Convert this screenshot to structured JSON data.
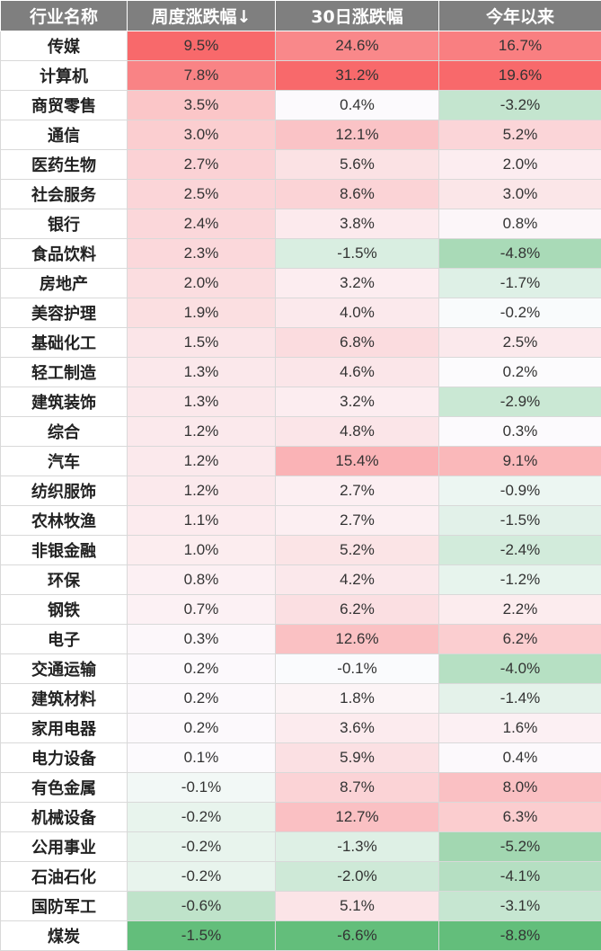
{
  "chart_data": {
    "type": "table",
    "columns": [
      "行业名称",
      "周度涨跌幅↓",
      "30日涨跌幅",
      "今年以来"
    ],
    "rows": [
      {
        "industry": "传媒",
        "weekly": 9.5,
        "d30": 24.6,
        "ytd": 16.7
      },
      {
        "industry": "计算机",
        "weekly": 7.8,
        "d30": 31.2,
        "ytd": 19.6
      },
      {
        "industry": "商贸零售",
        "weekly": 3.5,
        "d30": 0.4,
        "ytd": -3.2
      },
      {
        "industry": "通信",
        "weekly": 3.0,
        "d30": 12.1,
        "ytd": 5.2
      },
      {
        "industry": "医药生物",
        "weekly": 2.7,
        "d30": 5.6,
        "ytd": 2.0
      },
      {
        "industry": "社会服务",
        "weekly": 2.5,
        "d30": 8.6,
        "ytd": 3.0
      },
      {
        "industry": "银行",
        "weekly": 2.4,
        "d30": 3.8,
        "ytd": 0.8
      },
      {
        "industry": "食品饮料",
        "weekly": 2.3,
        "d30": -1.5,
        "ytd": -4.8
      },
      {
        "industry": "房地产",
        "weekly": 2.0,
        "d30": 3.2,
        "ytd": -1.7
      },
      {
        "industry": "美容护理",
        "weekly": 1.9,
        "d30": 4.0,
        "ytd": -0.2
      },
      {
        "industry": "基础化工",
        "weekly": 1.5,
        "d30": 6.8,
        "ytd": 2.5
      },
      {
        "industry": "轻工制造",
        "weekly": 1.3,
        "d30": 4.6,
        "ytd": 0.2
      },
      {
        "industry": "建筑装饰",
        "weekly": 1.3,
        "d30": 3.2,
        "ytd": -2.9
      },
      {
        "industry": "综合",
        "weekly": 1.2,
        "d30": 4.8,
        "ytd": 0.3
      },
      {
        "industry": "汽车",
        "weekly": 1.2,
        "d30": 15.4,
        "ytd": 9.1
      },
      {
        "industry": "纺织服饰",
        "weekly": 1.2,
        "d30": 2.7,
        "ytd": -0.9
      },
      {
        "industry": "农林牧渔",
        "weekly": 1.1,
        "d30": 2.7,
        "ytd": -1.5
      },
      {
        "industry": "非银金融",
        "weekly": 1.0,
        "d30": 5.2,
        "ytd": -2.4
      },
      {
        "industry": "环保",
        "weekly": 0.8,
        "d30": 4.2,
        "ytd": -1.2
      },
      {
        "industry": "钢铁",
        "weekly": 0.7,
        "d30": 6.2,
        "ytd": 2.2
      },
      {
        "industry": "电子",
        "weekly": 0.3,
        "d30": 12.6,
        "ytd": 6.2
      },
      {
        "industry": "交通运输",
        "weekly": 0.2,
        "d30": -0.1,
        "ytd": -4.0
      },
      {
        "industry": "建筑材料",
        "weekly": 0.2,
        "d30": 1.8,
        "ytd": -1.4
      },
      {
        "industry": "家用电器",
        "weekly": 0.2,
        "d30": 3.6,
        "ytd": 1.6
      },
      {
        "industry": "电力设备",
        "weekly": 0.1,
        "d30": 5.9,
        "ytd": 0.4
      },
      {
        "industry": "有色金属",
        "weekly": -0.1,
        "d30": 8.7,
        "ytd": 8.0
      },
      {
        "industry": "机械设备",
        "weekly": -0.2,
        "d30": 12.7,
        "ytd": 6.3
      },
      {
        "industry": "公用事业",
        "weekly": -0.2,
        "d30": -1.3,
        "ytd": -5.2
      },
      {
        "industry": "石油石化",
        "weekly": -0.2,
        "d30": -2.0,
        "ytd": -4.1
      },
      {
        "industry": "国防军工",
        "weekly": -0.6,
        "d30": 5.1,
        "ytd": -3.1
      },
      {
        "industry": "煤炭",
        "weekly": -1.5,
        "d30": -6.6,
        "ytd": -8.8
      }
    ],
    "value_suffix": "%",
    "colors": {
      "header_bg": "#7f7f7f",
      "positive": "#f8696b",
      "negative": "#63be7b",
      "neutral": "#fcfcff"
    }
  }
}
